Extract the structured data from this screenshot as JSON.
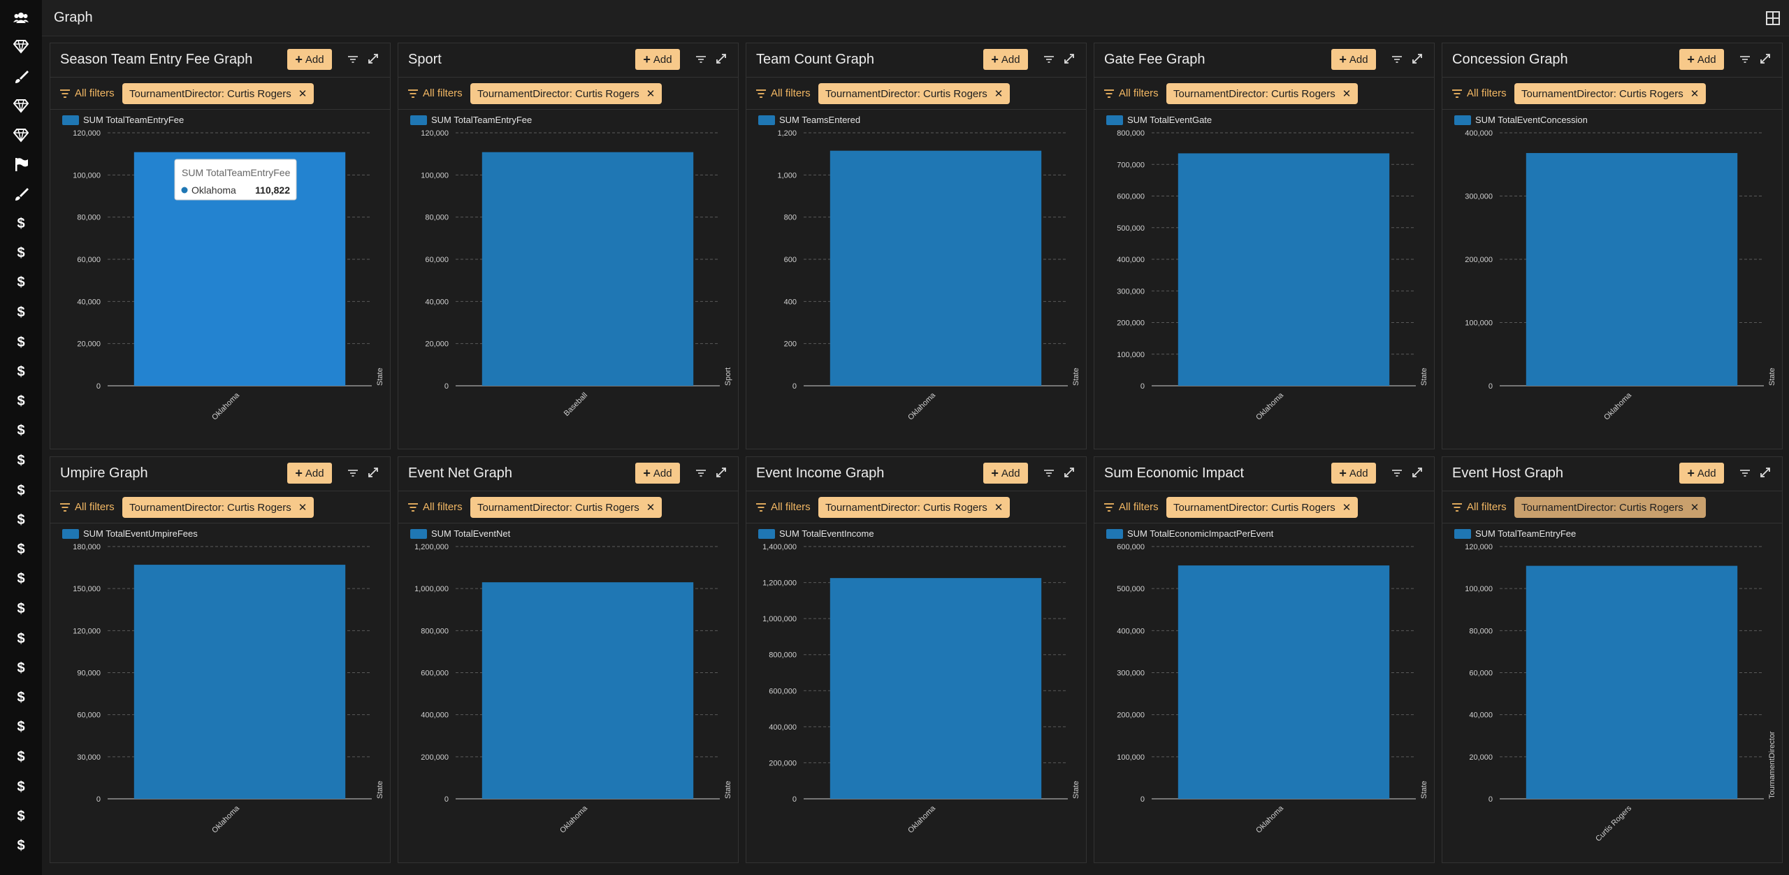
{
  "header": {
    "title": "Graph",
    "layout_icon": "grid-icon"
  },
  "sidebar": {
    "icons": [
      "users-icon",
      "gem-icon",
      "brush-icon",
      "gem-icon",
      "gem-icon",
      "flag-icon",
      "brush-icon",
      "dollar-icon",
      "dollar-icon",
      "dollar-icon",
      "dollar-icon",
      "dollar-icon",
      "dollar-icon",
      "dollar-icon",
      "dollar-icon",
      "dollar-icon",
      "dollar-icon",
      "dollar-icon",
      "dollar-icon",
      "dollar-icon",
      "dollar-icon",
      "dollar-icon",
      "dollar-icon",
      "dollar-icon",
      "dollar-icon",
      "dollar-icon",
      "dollar-icon",
      "dollar-icon",
      "dollar-icon"
    ]
  },
  "common": {
    "add_label": "Add",
    "all_filters_label": "All filters"
  },
  "colors": {
    "bar": "#1f77b4",
    "bar_hover": "#2383d0",
    "chip": "#f7c98a",
    "accent": "#f3b864"
  },
  "panels": [
    {
      "title": "Season Team Entry Fee Graph",
      "filter_chip": "TournamentDirector: Curtis Rogers",
      "tooltip": {
        "title": "SUM TotalTeamEntryFee",
        "label": "Oklahoma",
        "value": "110,822"
      },
      "chart_data": {
        "type": "bar",
        "categories": [
          "Oklahoma"
        ],
        "series": [
          {
            "name": "SUM TotalTeamEntryFee",
            "values": [
              110822
            ]
          }
        ],
        "xlabel": "State",
        "ylim": [
          0,
          120000
        ],
        "yticks": [
          "0",
          "20,000",
          "40,000",
          "60,000",
          "80,000",
          "100,000",
          "120,000"
        ],
        "legend": "top-left",
        "grid": true
      }
    },
    {
      "title": "Sport",
      "filter_chip": "TournamentDirector: Curtis Rogers",
      "chart_data": {
        "type": "bar",
        "categories": [
          "Baseball"
        ],
        "series": [
          {
            "name": "SUM TotalTeamEntryFee",
            "values": [
              110822
            ]
          }
        ],
        "xlabel": "Sport",
        "ylim": [
          0,
          120000
        ],
        "yticks": [
          "0",
          "20,000",
          "40,000",
          "60,000",
          "80,000",
          "100,000",
          "120,000"
        ],
        "legend": "top-left",
        "grid": true
      }
    },
    {
      "title": "Team Count Graph",
      "filter_chip": "TournamentDirector: Curtis Rogers",
      "chart_data": {
        "type": "bar",
        "categories": [
          "Oklahoma"
        ],
        "series": [
          {
            "name": "SUM TeamsEntered",
            "values": [
              1115
            ]
          }
        ],
        "xlabel": "State",
        "ylim": [
          0,
          1200
        ],
        "yticks": [
          "0",
          "200",
          "400",
          "600",
          "800",
          "1,000",
          "1,200"
        ],
        "legend": "top-left",
        "grid": true
      }
    },
    {
      "title": "Gate Fee Graph",
      "filter_chip": "TournamentDirector: Curtis Rogers",
      "chart_data": {
        "type": "bar",
        "categories": [
          "Oklahoma"
        ],
        "series": [
          {
            "name": "SUM TotalEventGate",
            "values": [
              735000
            ]
          }
        ],
        "xlabel": "State",
        "ylim": [
          0,
          800000
        ],
        "yticks": [
          "0",
          "100,000",
          "200,000",
          "300,000",
          "400,000",
          "500,000",
          "600,000",
          "700,000",
          "800,000"
        ],
        "legend": "top-left",
        "grid": true
      }
    },
    {
      "title": "Concession Graph",
      "filter_chip": "TournamentDirector: Curtis Rogers",
      "chart_data": {
        "type": "bar",
        "categories": [
          "Oklahoma"
        ],
        "series": [
          {
            "name": "SUM TotalEventConcession",
            "values": [
              368000
            ]
          }
        ],
        "xlabel": "State",
        "ylim": [
          0,
          400000
        ],
        "yticks": [
          "0",
          "100,000",
          "200,000",
          "300,000",
          "400,000"
        ],
        "legend": "top-left",
        "grid": true
      }
    },
    {
      "title": "Umpire Graph",
      "filter_chip": "TournamentDirector: Curtis Rogers",
      "chart_data": {
        "type": "bar",
        "categories": [
          "Oklahoma"
        ],
        "series": [
          {
            "name": "SUM TotalEventUmpireFees",
            "values": [
              167000
            ]
          }
        ],
        "xlabel": "State",
        "ylim": [
          0,
          180000
        ],
        "yticks": [
          "0",
          "30,000",
          "60,000",
          "90,000",
          "120,000",
          "150,000",
          "180,000"
        ],
        "legend": "top-left",
        "grid": true
      }
    },
    {
      "title": "Event Net Graph",
      "filter_chip": "TournamentDirector: Curtis Rogers",
      "chart_data": {
        "type": "bar",
        "categories": [
          "Oklahoma"
        ],
        "series": [
          {
            "name": "SUM TotalEventNet",
            "values": [
              1030000
            ]
          }
        ],
        "xlabel": "State",
        "ylim": [
          0,
          1200000
        ],
        "yticks": [
          "0",
          "200,000",
          "400,000",
          "600,000",
          "800,000",
          "1,000,000",
          "1,200,000"
        ],
        "legend": "top-left",
        "grid": true
      }
    },
    {
      "title": "Event Income Graph",
      "filter_chip": "TournamentDirector: Curtis Rogers",
      "chart_data": {
        "type": "bar",
        "categories": [
          "Oklahoma"
        ],
        "series": [
          {
            "name": "SUM TotalEventIncome",
            "values": [
              1225000
            ]
          }
        ],
        "xlabel": "State",
        "ylim": [
          0,
          1400000
        ],
        "yticks": [
          "0",
          "200,000",
          "400,000",
          "600,000",
          "800,000",
          "1,000,000",
          "1,200,000",
          "1,400,000"
        ],
        "legend": "top-left",
        "grid": true
      }
    },
    {
      "title": "Sum Economic Impact",
      "filter_chip": "TournamentDirector: Curtis Rogers",
      "chart_data": {
        "type": "bar",
        "categories": [
          "Oklahoma"
        ],
        "series": [
          {
            "name": "SUM TotalEconomicImpactPerEvent",
            "values": [
              555000
            ]
          }
        ],
        "xlabel": "State",
        "ylim": [
          0,
          600000
        ],
        "yticks": [
          "0",
          "100,000",
          "200,000",
          "300,000",
          "400,000",
          "500,000",
          "600,000"
        ],
        "legend": "top-left",
        "grid": true
      }
    },
    {
      "title": "Event Host Graph",
      "filter_chip": "TournamentDirector: Curtis Rogers",
      "chip_dim": true,
      "chart_data": {
        "type": "bar",
        "categories": [
          "Curtis Rogers"
        ],
        "series": [
          {
            "name": "SUM TotalTeamEntryFee",
            "values": [
              110822
            ]
          }
        ],
        "xlabel": "TournamentDirector",
        "ylim": [
          0,
          120000
        ],
        "yticks": [
          "0",
          "20,000",
          "40,000",
          "60,000",
          "80,000",
          "100,000",
          "120,000"
        ],
        "legend": "top-left",
        "grid": true
      }
    }
  ]
}
